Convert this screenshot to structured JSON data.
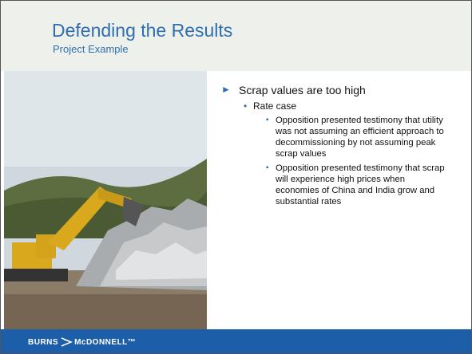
{
  "header": {
    "title": "Defending the Results",
    "subtitle": "Project Example"
  },
  "bullets": {
    "level1": "Scrap values are too high",
    "level2": "Rate case",
    "level3": [
      "Opposition presented testimony that utility was not assuming an efficient approach to decommissioning by not assuming peak scrap values",
      "Opposition presented testimony that scrap will experience high prices when economies of China and India grow and substantial rates"
    ]
  },
  "footer": {
    "logo_left": "BURNS",
    "logo_right": "McDONNELL™"
  }
}
